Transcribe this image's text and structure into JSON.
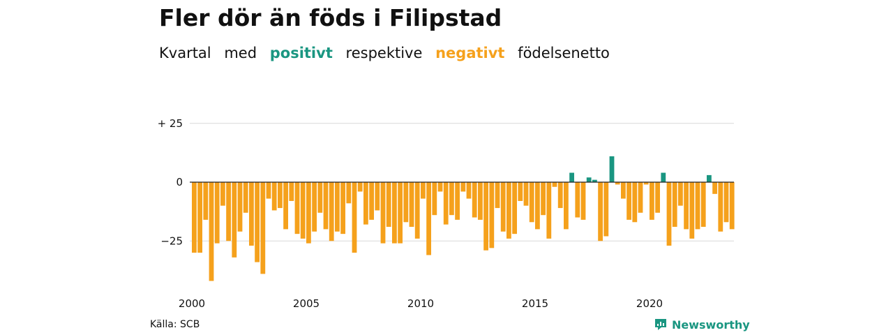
{
  "header": {
    "title": "Fler dör än föds i Filipstad",
    "subtitle_1": "Kvartal",
    "subtitle_2": "med",
    "subtitle_pos": "positivt",
    "subtitle_3": "respektive",
    "subtitle_neg": "negativt",
    "subtitle_4": "födelsenetto"
  },
  "footer": {
    "source": "Källa: SCB",
    "brand": "Newsworthy"
  },
  "colors": {
    "positive": "#1a9681",
    "negative": "#f5a11c",
    "grid": "#d9d9d9",
    "zero": "#222222"
  },
  "chart_data": {
    "type": "bar",
    "x_start": "2000 Q1",
    "x_step": "quarter",
    "xtick_labels": [
      "2000",
      "2005",
      "2010",
      "2015",
      "2020"
    ],
    "ytick_labels": [
      "+ 25",
      "0",
      "−25"
    ],
    "ytick_values": [
      25,
      0,
      -25
    ],
    "ylim": [
      -44,
      27
    ],
    "grid": true,
    "values": [
      -30,
      -30,
      -16,
      -42,
      -26,
      -10,
      -25,
      -32,
      -21,
      -13,
      -27,
      -34,
      -39,
      -7,
      -12,
      -11,
      -20,
      -8,
      -22,
      -24,
      -26,
      -21,
      -13,
      -20,
      -25,
      -21,
      -22,
      -9,
      -30,
      -4,
      -18,
      -16,
      -12,
      -26,
      -19,
      -26,
      -26,
      -17,
      -19,
      -24,
      -7,
      -31,
      -14,
      -4,
      -18,
      -14,
      -16,
      -4,
      -7,
      -15,
      -16,
      -29,
      -28,
      -11,
      -21,
      -24,
      -22,
      -8,
      -10,
      -17,
      -20,
      -14,
      -24,
      -2,
      -11,
      -20,
      4,
      -15,
      -16,
      2,
      1,
      -25,
      -23,
      11,
      -1,
      -7,
      -16,
      -17,
      -13,
      -1,
      -16,
      -13,
      4,
      -27,
      -19,
      -10,
      -20,
      -24,
      -20,
      -19,
      3,
      -5,
      -21,
      -17,
      -20
    ]
  }
}
